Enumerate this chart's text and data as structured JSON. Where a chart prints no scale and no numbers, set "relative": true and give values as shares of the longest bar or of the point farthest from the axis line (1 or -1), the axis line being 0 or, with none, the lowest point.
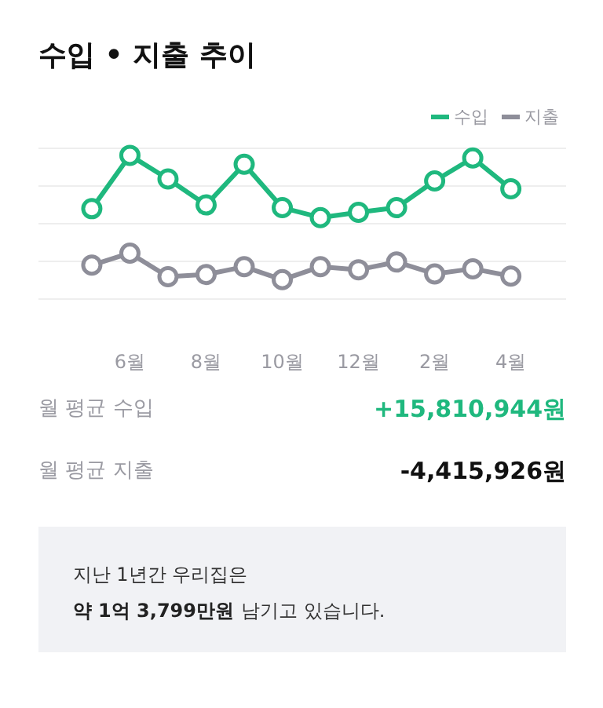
{
  "chart_data": {
    "type": "line",
    "title": "수입 • 지출 추이",
    "categories": [
      null,
      "6월",
      null,
      "8월",
      null,
      "10월",
      null,
      "12월",
      null,
      "2월",
      null,
      "4월"
    ],
    "relative": true,
    "grid": "y",
    "legend": "top right",
    "marker": "circle",
    "line_style": "solid",
    "series": [
      {
        "name": "수입",
        "color": "#1fb87e",
        "values": [
          0.629,
          1.0,
          0.836,
          0.655,
          0.938,
          0.636,
          0.567,
          0.604,
          0.636,
          0.822,
          0.982,
          0.767
        ]
      },
      {
        "name": "지출",
        "color": "#8e8e99",
        "values": [
          0.236,
          0.32,
          0.156,
          0.171,
          0.225,
          0.135,
          0.225,
          0.204,
          0.258,
          0.175,
          0.211,
          0.16
        ]
      }
    ],
    "annotations": [
      "월 평균 수입",
      "+15,810,944원",
      "월 평균 지출",
      "-4,415,926원",
      "지난 1년간 우리집은",
      "약 1억 3,799만원",
      "남기고 있습니다."
    ]
  }
}
